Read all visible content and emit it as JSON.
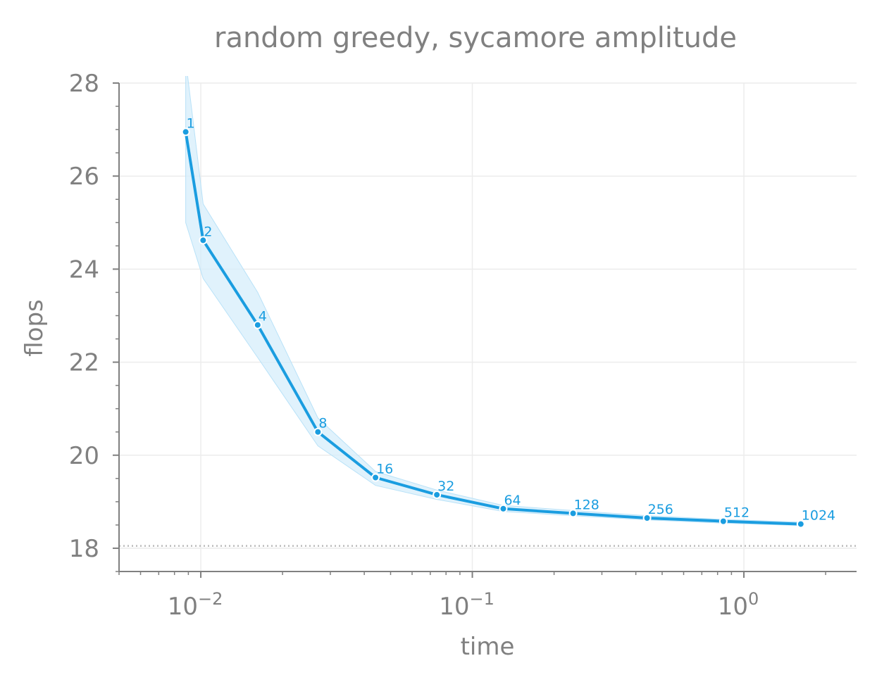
{
  "chart_data": {
    "type": "line",
    "title": "random greedy, sycamore amplitude",
    "xlabel": "time",
    "ylabel": "flops",
    "x_scale": "log",
    "xlim": [
      0.005,
      2.6
    ],
    "ylim": [
      17.5,
      28
    ],
    "x_ticks": [
      {
        "value": 0.01,
        "base": "10",
        "exp": "−2"
      },
      {
        "value": 0.1,
        "base": "10",
        "exp": "−1"
      },
      {
        "value": 1,
        "base": "10",
        "exp": "0"
      }
    ],
    "y_ticks": [
      18,
      20,
      22,
      24,
      26,
      28
    ],
    "grid": true,
    "reference_line": {
      "y": 18.05,
      "style": "dotted",
      "color": "#bbbbbb"
    },
    "colors": {
      "series": "#1a9de0",
      "band": "#d6eefb",
      "text": "#808080"
    },
    "series": [
      {
        "points": [
          {
            "x": 0.0088,
            "y": 26.95,
            "label": "1"
          },
          {
            "x": 0.0102,
            "y": 24.62,
            "label": "2"
          },
          {
            "x": 0.0162,
            "y": 22.8,
            "label": "4"
          },
          {
            "x": 0.027,
            "y": 20.5,
            "label": "8"
          },
          {
            "x": 0.044,
            "y": 19.52,
            "label": "16"
          },
          {
            "x": 0.074,
            "y": 19.15,
            "label": "32"
          },
          {
            "x": 0.13,
            "y": 18.85,
            "label": "64"
          },
          {
            "x": 0.235,
            "y": 18.75,
            "label": "128"
          },
          {
            "x": 0.44,
            "y": 18.65,
            "label": "256"
          },
          {
            "x": 0.84,
            "y": 18.58,
            "label": "512"
          },
          {
            "x": 1.62,
            "y": 18.52,
            "label": "1024"
          }
        ],
        "band_upper": [
          28.5,
          25.4,
          23.5,
          20.8,
          19.65,
          19.25,
          18.92,
          18.81,
          18.7,
          18.62,
          18.56
        ],
        "band_lower": [
          25.0,
          23.8,
          22.1,
          20.2,
          19.35,
          19.05,
          18.79,
          18.7,
          18.61,
          18.54,
          18.49
        ]
      }
    ]
  }
}
